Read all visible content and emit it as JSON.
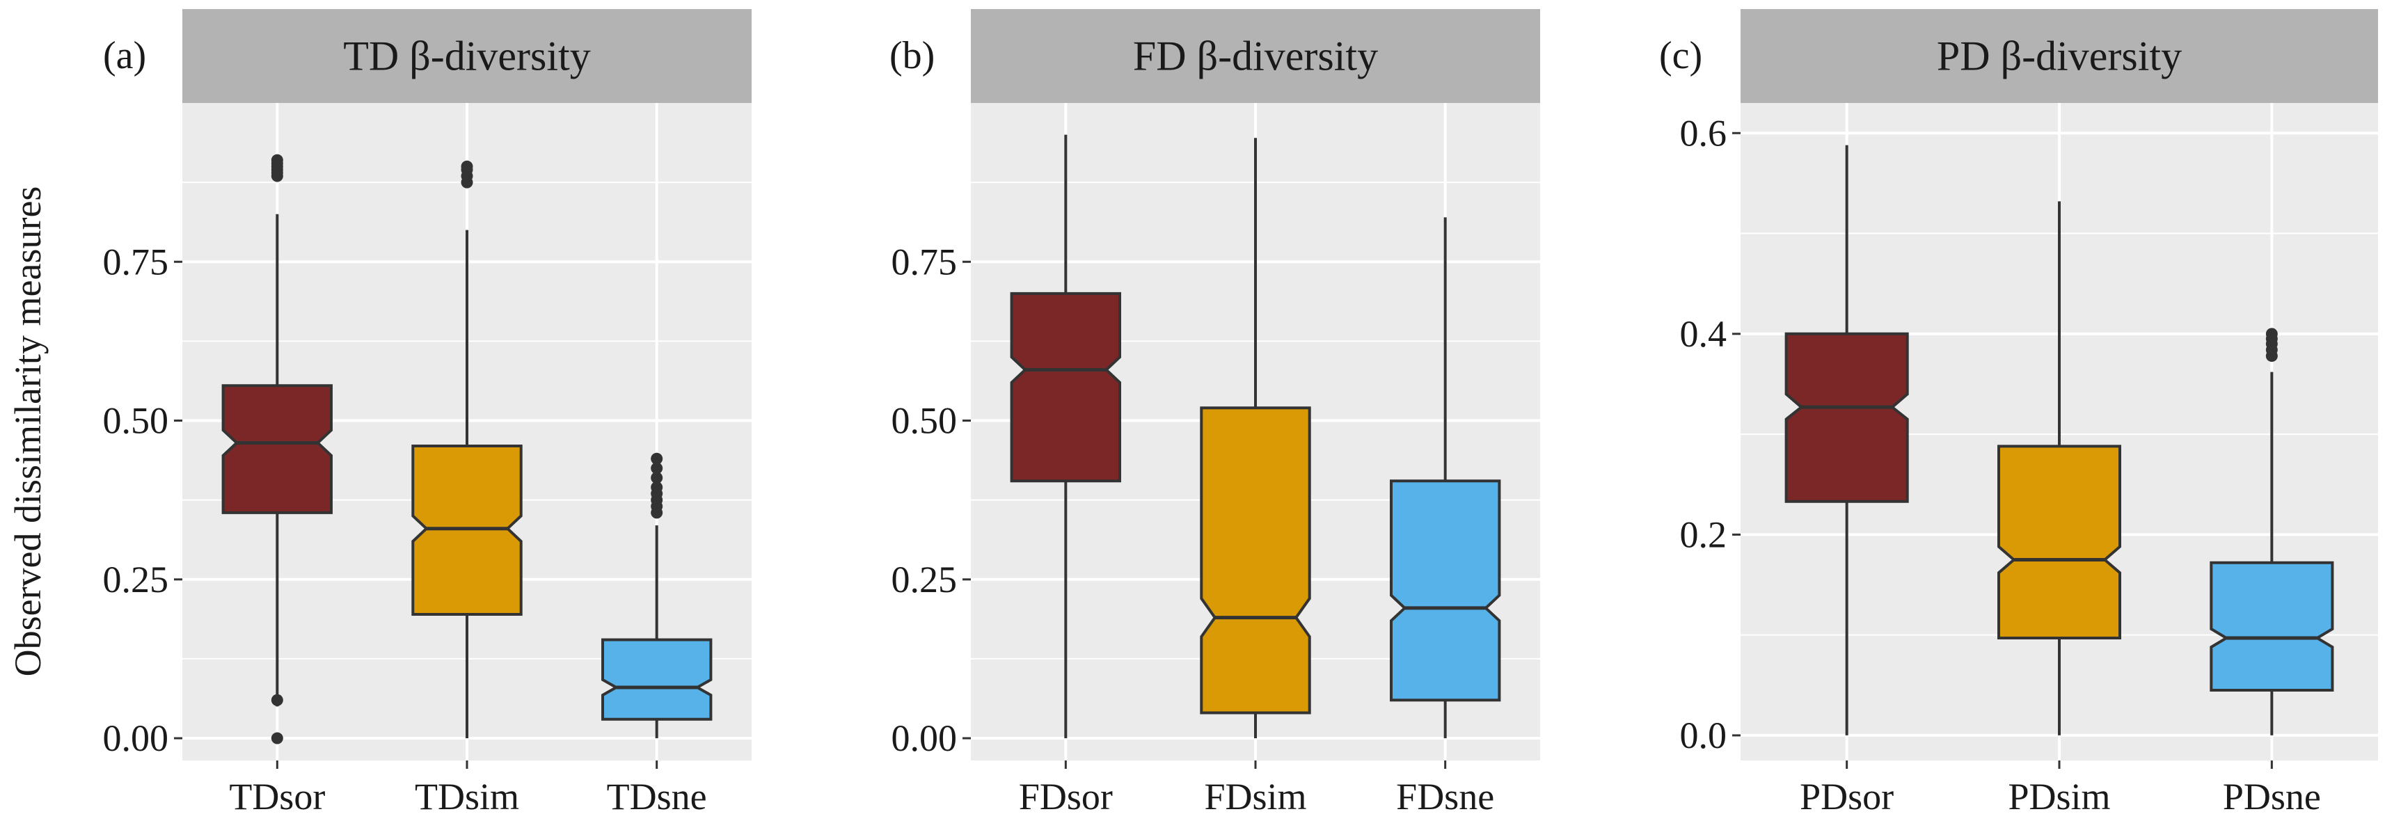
{
  "chart_data": {
    "type": "boxplot",
    "ylabel": "Observed dissimilarity measures",
    "colors": {
      "sor": "#7b2728",
      "sim": "#d99a05",
      "sne": "#56b2e8",
      "panel_bg": "#ebebeb",
      "strip_bg": "#b3b3b3",
      "grid": "#ffffff",
      "outline": "#333333",
      "outlier": "#333333"
    },
    "panels": [
      {
        "label": "(a)",
        "title": "TD β-diversity",
        "ylim": [
          -0.035,
          1.0
        ],
        "yticks": [
          0.0,
          0.25,
          0.5,
          0.75
        ],
        "ytick_labels": [
          "0.00",
          "0.25",
          "0.50",
          "0.75"
        ],
        "categories": [
          "TDsor",
          "TDsim",
          "TDsne"
        ],
        "boxes": [
          {
            "name": "TDsor",
            "whisker_low": 0.05,
            "q1": 0.355,
            "median": 0.465,
            "q3": 0.555,
            "whisker_high": 0.825,
            "notch_low": 0.445,
            "notch_high": 0.485,
            "outliers": [
              0.0,
              0.06,
              0.885,
              0.89,
              0.895,
              0.9,
              0.905,
              0.91
            ]
          },
          {
            "name": "TDsim",
            "whisker_low": 0.0,
            "q1": 0.195,
            "median": 0.33,
            "q3": 0.46,
            "whisker_high": 0.8,
            "notch_low": 0.31,
            "notch_high": 0.35,
            "outliers": [
              0.875,
              0.885,
              0.895,
              0.9
            ]
          },
          {
            "name": "TDsne",
            "whisker_low": 0.0,
            "q1": 0.03,
            "median": 0.08,
            "q3": 0.155,
            "whisker_high": 0.335,
            "notch_low": 0.068,
            "notch_high": 0.092,
            "outliers": [
              0.355,
              0.365,
              0.375,
              0.385,
              0.395,
              0.41,
              0.425,
              0.44
            ]
          }
        ]
      },
      {
        "label": "(b)",
        "title": "FD β-diversity",
        "ylim": [
          -0.035,
          1.0
        ],
        "yticks": [
          0.0,
          0.25,
          0.5,
          0.75
        ],
        "ytick_labels": [
          "0.00",
          "0.25",
          "0.50",
          "0.75"
        ],
        "categories": [
          "FDsor",
          "FDsim",
          "FDsne"
        ],
        "boxes": [
          {
            "name": "FDsor",
            "whisker_low": 0.0,
            "q1": 0.405,
            "median": 0.58,
            "q3": 0.7,
            "whisker_high": 0.95,
            "notch_low": 0.56,
            "notch_high": 0.6,
            "outliers": []
          },
          {
            "name": "FDsim",
            "whisker_low": 0.0,
            "q1": 0.04,
            "median": 0.19,
            "q3": 0.52,
            "whisker_high": 0.945,
            "notch_low": 0.16,
            "notch_high": 0.22,
            "outliers": []
          },
          {
            "name": "FDsne",
            "whisker_low": 0.0,
            "q1": 0.06,
            "median": 0.205,
            "q3": 0.405,
            "whisker_high": 0.82,
            "notch_low": 0.185,
            "notch_high": 0.225,
            "outliers": []
          }
        ]
      },
      {
        "label": "(c)",
        "title": "PD β-diversity",
        "ylim": [
          -0.025,
          0.63
        ],
        "yticks": [
          0.0,
          0.2,
          0.4,
          0.6
        ],
        "ytick_labels": [
          "0.0",
          "0.2",
          "0.4",
          "0.6"
        ],
        "categories": [
          "PDsor",
          "PDsim",
          "PDsne"
        ],
        "boxes": [
          {
            "name": "PDsor",
            "whisker_low": 0.0,
            "q1": 0.233,
            "median": 0.327,
            "q3": 0.4,
            "whisker_high": 0.588,
            "notch_low": 0.315,
            "notch_high": 0.34,
            "outliers": []
          },
          {
            "name": "PDsim",
            "whisker_low": 0.0,
            "q1": 0.097,
            "median": 0.175,
            "q3": 0.288,
            "whisker_high": 0.532,
            "notch_low": 0.162,
            "notch_high": 0.188,
            "outliers": []
          },
          {
            "name": "PDsne",
            "whisker_low": 0.0,
            "q1": 0.045,
            "median": 0.097,
            "q3": 0.172,
            "whisker_high": 0.362,
            "notch_low": 0.088,
            "notch_high": 0.106,
            "outliers": [
              0.378,
              0.384,
              0.39,
              0.395,
              0.4
            ]
          }
        ]
      }
    ]
  }
}
